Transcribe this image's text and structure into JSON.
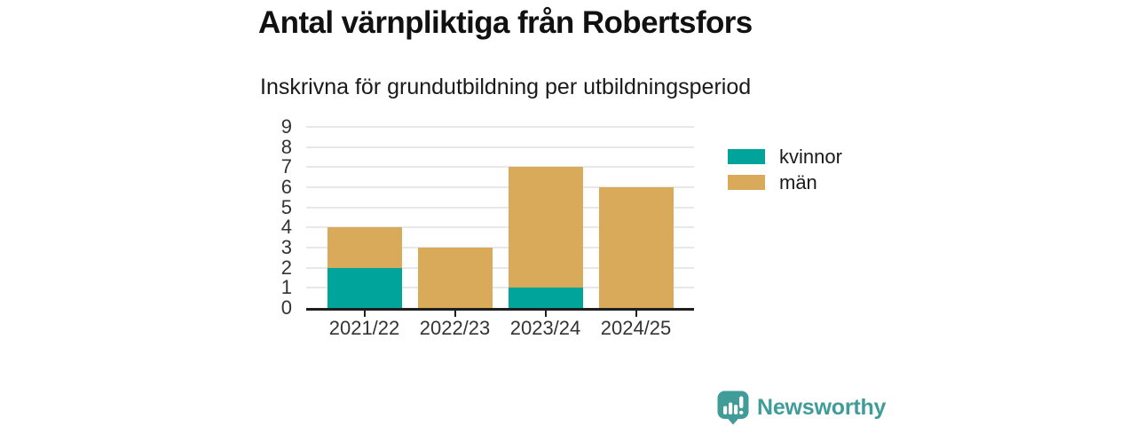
{
  "page": {
    "background": "#ffffff"
  },
  "chart_data": {
    "type": "bar",
    "stacked": true,
    "title": "Antal värnpliktiga från Robertsfors",
    "subtitle": "Inskrivna för grundutbildning per utbildningsperiod",
    "categories": [
      "2021/22",
      "2022/23",
      "2023/24",
      "2024/25"
    ],
    "series": [
      {
        "name": "kvinnor",
        "color": "#00a49a",
        "values": [
          2,
          0,
          1,
          0
        ]
      },
      {
        "name": "män",
        "color": "#d9aa5a",
        "values": [
          2,
          3,
          6,
          6
        ]
      }
    ],
    "totals": [
      4,
      3,
      7,
      6
    ],
    "ylim": [
      0,
      9
    ],
    "yticks": [
      0,
      1,
      2,
      3,
      4,
      5,
      6,
      7,
      8,
      9
    ],
    "grid": true,
    "gridline_color": "#e8e8e8",
    "axis_color": "#1f1f1f",
    "tick_label_color": "#333333",
    "legend_position": "right"
  },
  "branding": {
    "logo_text": "Newsworthy",
    "logo_color": "#3f9c98",
    "icon": "newsworthy-speech-bubble-bar-chart-icon"
  }
}
